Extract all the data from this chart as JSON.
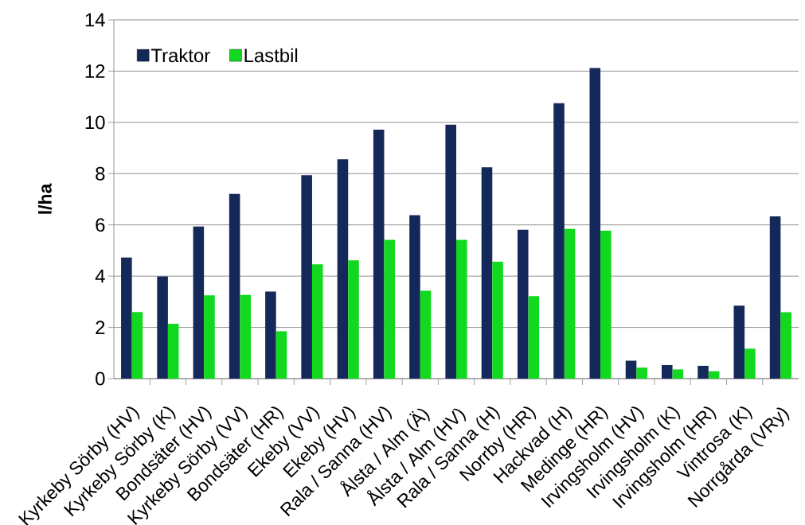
{
  "chart_data": {
    "type": "bar",
    "ylabel": "l/ha",
    "categories": [
      "Kyrkeby Sörby  (HV)",
      "Kyrkeby Sörby (K)",
      "Bondsäter (HV)",
      "Kyrkeby Sörby (VV)",
      "Bondsäter (HR)",
      "Ekeby (VV)",
      "Ekeby (HV)",
      "Rala / Sanna  (HV)",
      "Ålsta / Alm (Ä)",
      "Ålsta / Alm  (HV)",
      "Rala / Sanna (H)",
      "Norrby (HR)",
      "Hackvad (H)",
      "Medinge (HR)",
      "Irvingsholm (HV)",
      "Irvingsholm (K)",
      "Irvingsholm (HR)",
      "Vintrosa (K)",
      "Norrgårda (VRy)"
    ],
    "series": [
      {
        "name": "Traktor",
        "color": "#14285a",
        "values": [
          4.73,
          3.99,
          5.94,
          7.21,
          3.4,
          7.94,
          8.56,
          9.72,
          6.38,
          9.91,
          8.25,
          5.81,
          10.75,
          12.12,
          0.7,
          0.53,
          0.5,
          2.85,
          6.33
        ]
      },
      {
        "name": "Lastbil",
        "color": "#12d81f",
        "values": [
          2.6,
          2.14,
          3.25,
          3.27,
          1.85,
          4.46,
          4.62,
          5.42,
          3.43,
          5.42,
          4.56,
          3.22,
          5.84,
          5.77,
          0.43,
          0.36,
          0.29,
          1.17,
          2.59
        ]
      }
    ],
    "ylim": [
      0,
      14
    ],
    "yticks": [
      0,
      2,
      4,
      6,
      8,
      10,
      12,
      14
    ],
    "grid": "y",
    "legend": "top left"
  }
}
